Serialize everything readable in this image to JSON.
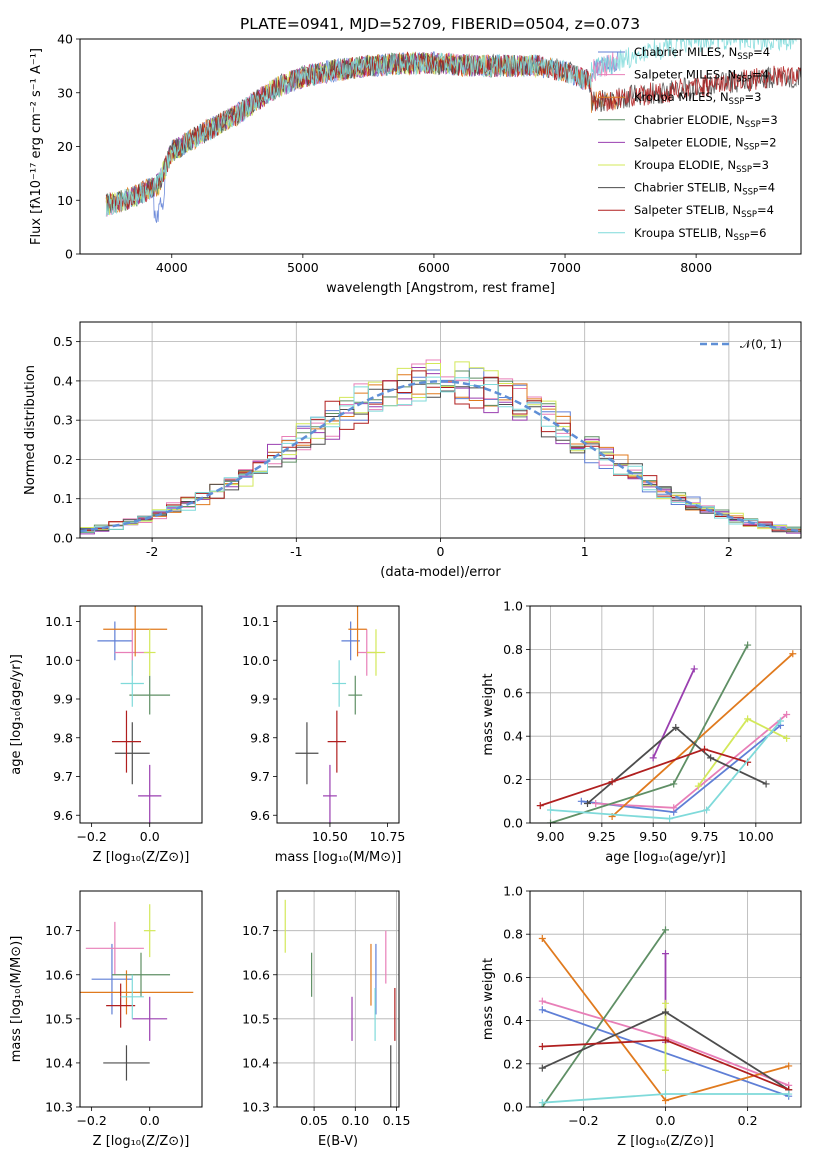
{
  "figure": {
    "title": "PLATE=0941, MJD=52709, FIBERID=0504, z=0.073"
  },
  "chart_data": [
    {
      "id": "spectrum",
      "type": "line",
      "xlabel": "wavelength [Angstrom, rest frame]",
      "ylabel": "Flux [fλ10⁻¹⁷ erg cm⁻² s⁻¹ A⁻¹]",
      "xlim": [
        3300,
        8800
      ],
      "ylim": [
        0,
        40
      ],
      "xticks": [
        4000,
        5000,
        6000,
        7000,
        8000
      ],
      "yticks": [
        0,
        10,
        20,
        30,
        40
      ],
      "grid": false,
      "legend_position": "top-right",
      "continuum_shape": {
        "x": [
          3500,
          3700,
          3900,
          4000,
          4200,
          4500,
          4800,
          5000,
          5200,
          5500,
          5800,
          6000,
          6300,
          6500,
          6800,
          7000,
          7100,
          7200,
          7400
        ],
        "y": [
          9,
          10.5,
          13,
          19,
          22,
          26,
          31,
          33,
          34,
          35,
          35.5,
          35.5,
          35,
          35,
          35,
          34,
          33,
          32,
          31
        ]
      },
      "red_end_models": {
        "x": [
          7200,
          7400,
          7700,
          8000,
          8300,
          8600
        ],
        "high_y": [
          34,
          36,
          38,
          39.5,
          40,
          40
        ],
        "low_y": [
          28,
          29,
          30,
          31,
          32,
          33
        ]
      },
      "series": [
        {
          "name": "Chabrier MILES, N",
          "sub": "SSP",
          "suffix": "=4",
          "color": "#5f7fd6",
          "end": 7400
        },
        {
          "name": "Salpeter MILES, N",
          "sub": "SSP",
          "suffix": "=4",
          "color": "#e87fb8",
          "end": 7400
        },
        {
          "name": "Kroupa MILES, N",
          "sub": "SSP",
          "suffix": "=3",
          "color": "#e07a1e",
          "end": 7400
        },
        {
          "name": "Chabrier ELODIE, N",
          "sub": "SSP",
          "suffix": "=3",
          "color": "#5f8f65",
          "end": 6800
        },
        {
          "name": "Salpeter ELODIE, N",
          "sub": "SSP",
          "suffix": "=2",
          "color": "#9a3fb0",
          "end": 6800
        },
        {
          "name": "Kroupa ELODIE, N",
          "sub": "SSP",
          "suffix": "=3",
          "color": "#d3e85a",
          "end": 6800
        },
        {
          "name": "Chabrier STELIB, N",
          "sub": "SSP",
          "suffix": "=4",
          "color": "#4d4d4d",
          "end": 8800
        },
        {
          "name": "Salpeter STELIB, N",
          "sub": "SSP",
          "suffix": "=4",
          "color": "#b01f1f",
          "end": 8800
        },
        {
          "name": "Kroupa STELIB, N",
          "sub": "SSP",
          "suffix": "=6",
          "color": "#7fdada",
          "end": 8800
        }
      ]
    },
    {
      "id": "residuals",
      "type": "line",
      "xlabel": "(data-model)/error",
      "ylabel": "Normed distribution",
      "xlim": [
        -2.5,
        2.5
      ],
      "ylim": [
        0,
        0.55
      ],
      "xticks": [
        -2,
        -1,
        0,
        1,
        2
      ],
      "yticks": [
        0.0,
        0.1,
        0.2,
        0.3,
        0.4,
        0.5
      ],
      "grid": true,
      "legend_position": "top-right",
      "gaussian_label": "𝒩(0, 1)",
      "gaussian_color": "#5f8fd6",
      "bin_width": 0.1
    },
    {
      "id": "age_vs_Z",
      "type": "scatter",
      "xlabel": "Z [log₁₀(Z/Z⊙)]",
      "ylabel": "age  [log₁₀(age/yr)]",
      "xlim": [
        -0.24,
        0.18
      ],
      "ylim": [
        9.58,
        10.14
      ],
      "xticks": [
        -0.2,
        0.0
      ],
      "xticklabels": [
        "−0.2",
        "0.0"
      ],
      "yticks": [
        9.6,
        9.7,
        9.8,
        9.9,
        10.0,
        10.1
      ],
      "points": [
        {
          "x": -0.12,
          "y": 10.05,
          "xerr": 0.06,
          "yerr": 0.05,
          "color": "#5f7fd6"
        },
        {
          "x": -0.06,
          "y": 10.02,
          "xerr": 0.06,
          "yerr": 0.06,
          "color": "#e87fb8"
        },
        {
          "x": -0.05,
          "y": 10.08,
          "xerr": 0.11,
          "yerr": 0.07,
          "color": "#e07a1e"
        },
        {
          "x": 0.0,
          "y": 9.91,
          "xerr": 0.07,
          "yerr": 0.05,
          "color": "#5f8f65"
        },
        {
          "x": 0.0,
          "y": 9.65,
          "xerr": 0.04,
          "yerr": 0.08,
          "color": "#9a3fb0"
        },
        {
          "x": 0.0,
          "y": 10.02,
          "xerr": 0.02,
          "yerr": 0.06,
          "color": "#d3e85a"
        },
        {
          "x": -0.06,
          "y": 9.76,
          "xerr": 0.06,
          "yerr": 0.08,
          "color": "#4d4d4d"
        },
        {
          "x": -0.08,
          "y": 9.79,
          "xerr": 0.05,
          "yerr": 0.08,
          "color": "#b01f1f"
        },
        {
          "x": -0.06,
          "y": 9.94,
          "xerr": 0.04,
          "yerr": 0.06,
          "color": "#7fdada"
        }
      ]
    },
    {
      "id": "age_vs_mass",
      "type": "scatter",
      "xlabel": "mass [log₁₀(M/M⊙)]",
      "ylabel": "",
      "xlim": [
        10.27,
        10.8
      ],
      "ylim": [
        9.58,
        10.14
      ],
      "xticks": [
        10.5,
        10.75
      ],
      "xticklabels": [
        "10.50",
        "10.75"
      ],
      "yticks": [
        9.6,
        9.7,
        9.8,
        9.9,
        10.0,
        10.1
      ],
      "points": [
        {
          "x": 10.59,
          "y": 10.05,
          "xerr": 0.04,
          "yerr": 0.05,
          "color": "#5f7fd6"
        },
        {
          "x": 10.66,
          "y": 10.02,
          "xerr": 0.04,
          "yerr": 0.06,
          "color": "#e87fb8"
        },
        {
          "x": 10.62,
          "y": 10.08,
          "xerr": 0.04,
          "yerr": 0.07,
          "color": "#e07a1e"
        },
        {
          "x": 10.61,
          "y": 9.91,
          "xerr": 0.03,
          "yerr": 0.05,
          "color": "#5f8f65"
        },
        {
          "x": 10.5,
          "y": 9.65,
          "xerr": 0.03,
          "yerr": 0.08,
          "color": "#9a3fb0"
        },
        {
          "x": 10.7,
          "y": 10.02,
          "xerr": 0.04,
          "yerr": 0.06,
          "color": "#d3e85a"
        },
        {
          "x": 10.4,
          "y": 9.76,
          "xerr": 0.05,
          "yerr": 0.08,
          "color": "#4d4d4d"
        },
        {
          "x": 10.53,
          "y": 9.79,
          "xerr": 0.04,
          "yerr": 0.08,
          "color": "#b01f1f"
        },
        {
          "x": 10.54,
          "y": 9.94,
          "xerr": 0.03,
          "yerr": 0.06,
          "color": "#7fdada"
        }
      ]
    },
    {
      "id": "massweight_vs_age",
      "type": "line",
      "xlabel": "age  [log₁₀(age/yr)]",
      "ylabel": "mass weight",
      "xlim": [
        8.9,
        10.22
      ],
      "ylim": [
        0,
        1.0
      ],
      "xticks": [
        9.0,
        9.25,
        9.5,
        9.75,
        10.0
      ],
      "xticklabels": [
        "9.00",
        "9.25",
        "9.50",
        "9.75",
        "10.00"
      ],
      "yticks": [
        0.0,
        0.2,
        0.4,
        0.6,
        0.8,
        1.0
      ],
      "grid": true,
      "series": [
        {
          "color": "#5f7fd6",
          "x": [
            9.15,
            9.6,
            10.12
          ],
          "y": [
            0.1,
            0.05,
            0.45
          ]
        },
        {
          "color": "#e87fb8",
          "x": [
            9.22,
            9.6,
            10.15
          ],
          "y": [
            0.09,
            0.07,
            0.5
          ]
        },
        {
          "color": "#e07a1e",
          "x": [
            9.3,
            10.18
          ],
          "y": [
            0.03,
            0.78
          ]
        },
        {
          "color": "#5f8f65",
          "x": [
            9.0,
            9.6,
            9.96
          ],
          "y": [
            0.0,
            0.18,
            0.82
          ]
        },
        {
          "color": "#9a3fb0",
          "x": [
            9.5,
            9.7
          ],
          "y": [
            0.3,
            0.71
          ]
        },
        {
          "color": "#d3e85a",
          "x": [
            9.72,
            9.96,
            10.15
          ],
          "y": [
            0.17,
            0.48,
            0.39
          ]
        },
        {
          "color": "#4d4d4d",
          "x": [
            9.18,
            9.61,
            9.78,
            10.05
          ],
          "y": [
            0.09,
            0.44,
            0.3,
            0.18
          ]
        },
        {
          "color": "#b01f1f",
          "x": [
            8.95,
            9.3,
            9.75,
            9.96
          ],
          "y": [
            0.08,
            0.19,
            0.34,
            0.28
          ]
        },
        {
          "color": "#7fdada",
          "x": [
            9.0,
            9.58,
            9.76,
            10.12
          ],
          "y": [
            0.06,
            0.02,
            0.06,
            0.47
          ]
        }
      ]
    },
    {
      "id": "mass_vs_Z",
      "type": "scatter",
      "xlabel": "Z [log₁₀(Z/Z⊙)]",
      "ylabel": "mass [log₁₀(M/M⊙)]",
      "xlim": [
        -0.24,
        0.18
      ],
      "ylim": [
        10.3,
        10.79
      ],
      "xticks": [
        -0.2,
        0.0
      ],
      "xticklabels": [
        "−0.2",
        "0.0"
      ],
      "yticks": [
        10.3,
        10.4,
        10.5,
        10.6,
        10.7
      ],
      "points": [
        {
          "x": -0.13,
          "y": 10.59,
          "xerr": 0.07,
          "yerr": 0.08,
          "color": "#5f7fd6"
        },
        {
          "x": -0.12,
          "y": 10.66,
          "xerr": 0.1,
          "yerr": 0.06,
          "color": "#e87fb8"
        },
        {
          "x": -0.08,
          "y": 10.56,
          "xerr": 0.23,
          "yerr": 0.05,
          "color": "#e07a1e"
        },
        {
          "x": -0.03,
          "y": 10.6,
          "xerr": 0.1,
          "yerr": 0.05,
          "color": "#5f8f65"
        },
        {
          "x": 0.0,
          "y": 10.5,
          "xerr": 0.06,
          "yerr": 0.05,
          "color": "#9a3fb0"
        },
        {
          "x": 0.0,
          "y": 10.7,
          "xerr": 0.02,
          "yerr": 0.06,
          "color": "#d3e85a"
        },
        {
          "x": -0.08,
          "y": 10.4,
          "xerr": 0.08,
          "yerr": 0.04,
          "color": "#4d4d4d"
        },
        {
          "x": -0.1,
          "y": 10.53,
          "xerr": 0.05,
          "yerr": 0.05,
          "color": "#b01f1f"
        },
        {
          "x": -0.06,
          "y": 10.55,
          "xerr": 0.04,
          "yerr": 0.05,
          "color": "#7fdada"
        }
      ]
    },
    {
      "id": "mass_vs_EBV",
      "type": "scatter",
      "xlabel": "E(B-V)",
      "ylabel": "",
      "xlim": [
        0.005,
        0.153
      ],
      "ylim": [
        10.3,
        10.79
      ],
      "xticks": [
        0.05,
        0.1,
        0.15
      ],
      "xticklabels": [
        "0.05",
        "0.10",
        "0.15"
      ],
      "yticks": [
        10.3,
        10.4,
        10.5,
        10.6,
        10.7
      ],
      "grid": true,
      "points": [
        {
          "x": 0.125,
          "y": 10.59,
          "yerr": 0.08,
          "color": "#5f7fd6"
        },
        {
          "x": 0.137,
          "y": 10.64,
          "yerr": 0.06,
          "color": "#e87fb8"
        },
        {
          "x": 0.119,
          "y": 10.6,
          "yerr": 0.07,
          "color": "#e07a1e"
        },
        {
          "x": 0.047,
          "y": 10.6,
          "yerr": 0.05,
          "color": "#5f8f65"
        },
        {
          "x": 0.096,
          "y": 10.5,
          "yerr": 0.05,
          "color": "#9a3fb0"
        },
        {
          "x": 0.015,
          "y": 10.71,
          "yerr": 0.06,
          "color": "#d3e85a"
        },
        {
          "x": 0.143,
          "y": 10.36,
          "yerr": 0.08,
          "color": "#4d4d4d"
        },
        {
          "x": 0.148,
          "y": 10.51,
          "yerr": 0.06,
          "color": "#b01f1f"
        },
        {
          "x": 0.124,
          "y": 10.51,
          "yerr": 0.06,
          "color": "#7fdada"
        }
      ]
    },
    {
      "id": "massweight_vs_Z",
      "type": "line",
      "xlabel": "Z [log₁₀(Z/Z⊙)]",
      "ylabel": "mass weight",
      "xlim": [
        -0.33,
        0.33
      ],
      "ylim": [
        0,
        1.0
      ],
      "xticks": [
        -0.2,
        0.0,
        0.2
      ],
      "xticklabels": [
        "−0.2",
        "0.0",
        "0.2"
      ],
      "yticks": [
        0.0,
        0.2,
        0.4,
        0.6,
        0.8,
        1.0
      ],
      "grid": true,
      "series": [
        {
          "color": "#5f7fd6",
          "x": [
            -0.3,
            0.3
          ],
          "y": [
            0.45,
            0.05
          ]
        },
        {
          "color": "#e87fb8",
          "x": [
            -0.3,
            0.0,
            0.3
          ],
          "y": [
            0.49,
            0.32,
            0.1
          ]
        },
        {
          "color": "#e07a1e",
          "x": [
            -0.3,
            0.0,
            0.3
          ],
          "y": [
            0.78,
            0.03,
            0.19
          ]
        },
        {
          "color": "#5f8f65",
          "x": [
            -0.3,
            0.0
          ],
          "y": [
            0.0,
            0.82
          ]
        },
        {
          "color": "#9a3fb0",
          "x": [
            0.0,
            0.0
          ],
          "y": [
            0.3,
            0.71
          ]
        },
        {
          "color": "#d3e85a",
          "x": [
            0.0,
            0.0
          ],
          "y": [
            0.17,
            0.48
          ]
        },
        {
          "color": "#4d4d4d",
          "x": [
            -0.3,
            0.0,
            0.3
          ],
          "y": [
            0.18,
            0.44,
            0.08
          ]
        },
        {
          "color": "#b01f1f",
          "x": [
            -0.3,
            0.0,
            0.3
          ],
          "y": [
            0.28,
            0.31,
            0.08
          ]
        },
        {
          "color": "#7fdada",
          "x": [
            -0.3,
            0.0,
            0.3
          ],
          "y": [
            0.02,
            0.06,
            0.06
          ]
        }
      ]
    }
  ]
}
